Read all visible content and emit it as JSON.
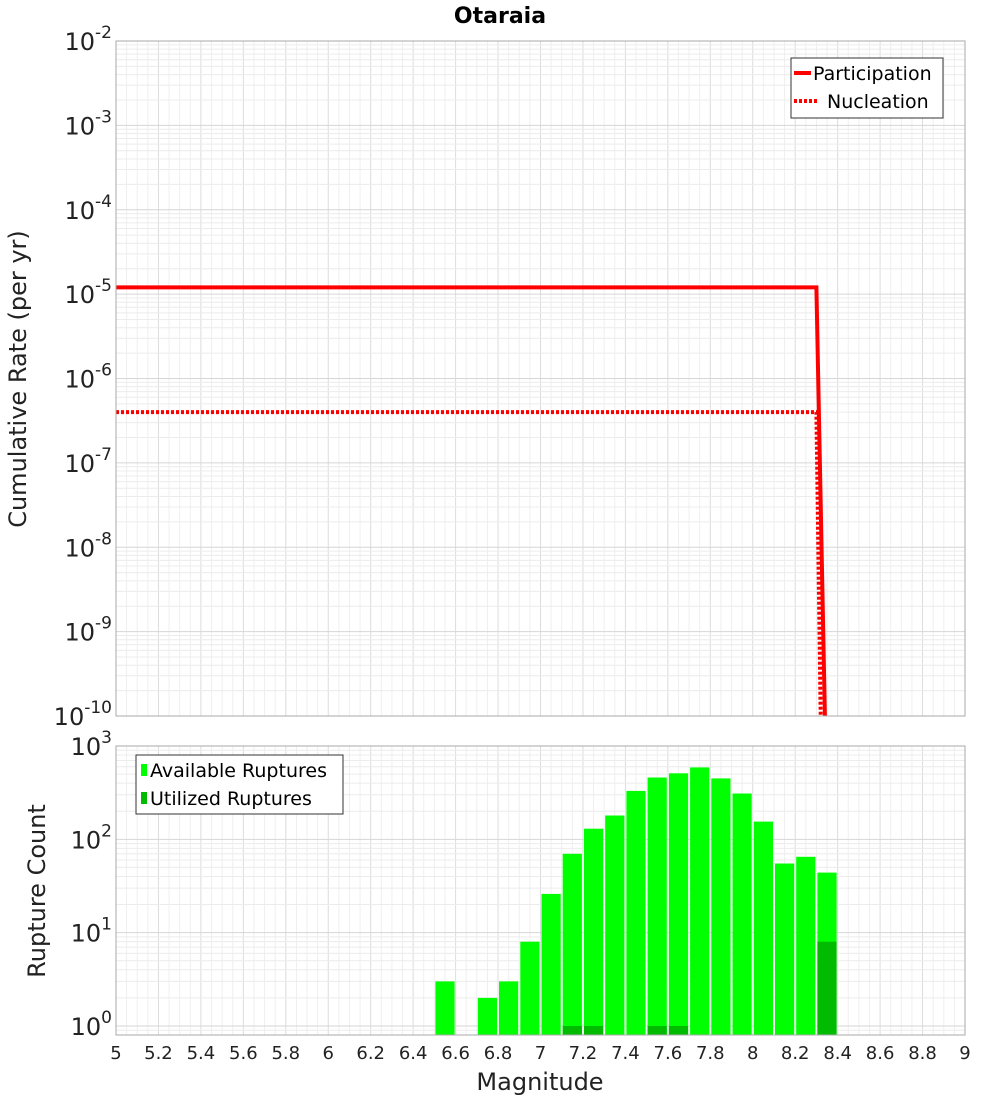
{
  "chart_data": [
    {
      "type": "line",
      "title": "Otaraia",
      "xlabel": "",
      "ylabel": "Cumulative Rate (per yr)",
      "xlim": [
        5,
        9
      ],
      "ylim": [
        1e-10,
        0.01
      ],
      "yscale": "log",
      "grid": true,
      "legend_position": "top-right",
      "y_tick_exponents": [
        "-2",
        "-3",
        "-4",
        "-5",
        "-6",
        "-7",
        "-8",
        "-9",
        "-10"
      ],
      "series": [
        {
          "name": "Participation",
          "style": "solid",
          "color": "#ff0000",
          "x": [
            5.0,
            8.3,
            8.34
          ],
          "y": [
            1.2e-05,
            1.2e-05,
            1e-10
          ]
        },
        {
          "name": "Nucleation",
          "style": "dotted",
          "color": "#ff0000",
          "x": [
            5.0,
            8.3,
            8.32
          ],
          "y": [
            4e-07,
            4e-07,
            1e-10
          ]
        }
      ]
    },
    {
      "type": "bar",
      "xlabel": "Magnitude",
      "ylabel": "Rupture Count",
      "xlim": [
        5,
        9
      ],
      "ylim": [
        0.8,
        1000
      ],
      "yscale": "log",
      "grid": true,
      "legend_position": "top-left",
      "y_tick_exponents": [
        "3",
        "2",
        "1",
        "0"
      ],
      "x_ticks": [
        "5",
        "5.2",
        "5.4",
        "5.6",
        "5.8",
        "6",
        "6.2",
        "6.4",
        "6.6",
        "6.8",
        "7",
        "7.2",
        "7.4",
        "7.6",
        "7.8",
        "8",
        "8.2",
        "8.4",
        "8.6",
        "8.8",
        "9"
      ],
      "bin_width": 0.1,
      "bin_centers": [
        6.55,
        6.65,
        6.75,
        6.85,
        6.95,
        7.05,
        7.15,
        7.25,
        7.35,
        7.45,
        7.55,
        7.65,
        7.75,
        7.85,
        7.95,
        8.05,
        8.15,
        8.25,
        8.35
      ],
      "series": [
        {
          "name": "Available Ruptures",
          "color": "#00ff00",
          "values": [
            3,
            0,
            2,
            3,
            8,
            26,
            70,
            130,
            180,
            330,
            460,
            510,
            590,
            450,
            310,
            155,
            55,
            65,
            44
          ]
        },
        {
          "name": "Utilized Ruptures",
          "color": "#00bb00",
          "values": [
            0,
            0,
            0,
            0,
            0,
            0,
            1,
            1,
            0,
            0,
            1,
            1,
            0,
            0,
            0,
            0,
            0,
            0,
            8
          ]
        }
      ]
    }
  ]
}
